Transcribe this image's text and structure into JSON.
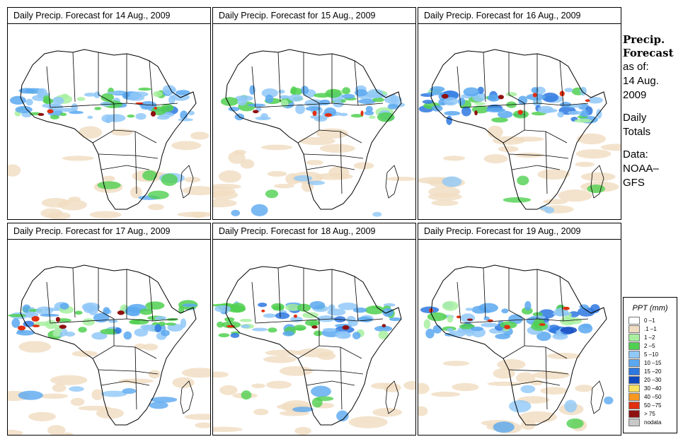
{
  "panel_title_prefix": "Daily Precip. Forecast for",
  "panels": [
    {
      "date": "14 Aug., 2009",
      "intensity": 0.6,
      "band_lat": 1.0
    },
    {
      "date": "15 Aug., 2009",
      "intensity": 0.55,
      "band_lat": 1.0
    },
    {
      "date": "16 Aug., 2009",
      "intensity": 0.85,
      "band_lat": 1.0
    },
    {
      "date": "17 Aug., 2009",
      "intensity": 0.7,
      "band_lat": 1.0
    },
    {
      "date": "18 Aug., 2009",
      "intensity": 0.8,
      "band_lat": 1.0
    },
    {
      "date": "19 Aug., 2009",
      "intensity": 0.85,
      "band_lat": 1.0
    }
  ],
  "side_info": {
    "title_line1": "Precip.",
    "title_line2": "Forecast",
    "asof": "as of:",
    "date_line1": "14 Aug.",
    "date_line2": "2009",
    "totals_line1": "Daily",
    "totals_line2": "Totals",
    "data_line1": "Data:",
    "data_line2": "NOAA–",
    "data_line3": "GFS"
  },
  "legend": {
    "title": "PPT (mm)",
    "items": [
      {
        "label": "0 –1",
        "color": "#ffffff"
      },
      {
        "label": ".1 –1",
        "color": "#f0dcc0"
      },
      {
        "label": "1 –2",
        "color": "#a8f0a0"
      },
      {
        "label": "2 –5",
        "color": "#50d050"
      },
      {
        "label": "5 –10",
        "color": "#90c8f8"
      },
      {
        "label": "10 –15",
        "color": "#5aa8f0"
      },
      {
        "label": "15 –20",
        "color": "#2e78e0"
      },
      {
        "label": "20 –30",
        "color": "#1048c0"
      },
      {
        "label": "30 –40",
        "color": "#f8e060"
      },
      {
        "label": "40 –50",
        "color": "#f89820"
      },
      {
        "label": "50 –75",
        "color": "#e03010"
      },
      {
        "label": "> 75",
        "color": "#901010"
      },
      {
        "label": "nodata",
        "color": "#c8c8c8"
      }
    ]
  }
}
